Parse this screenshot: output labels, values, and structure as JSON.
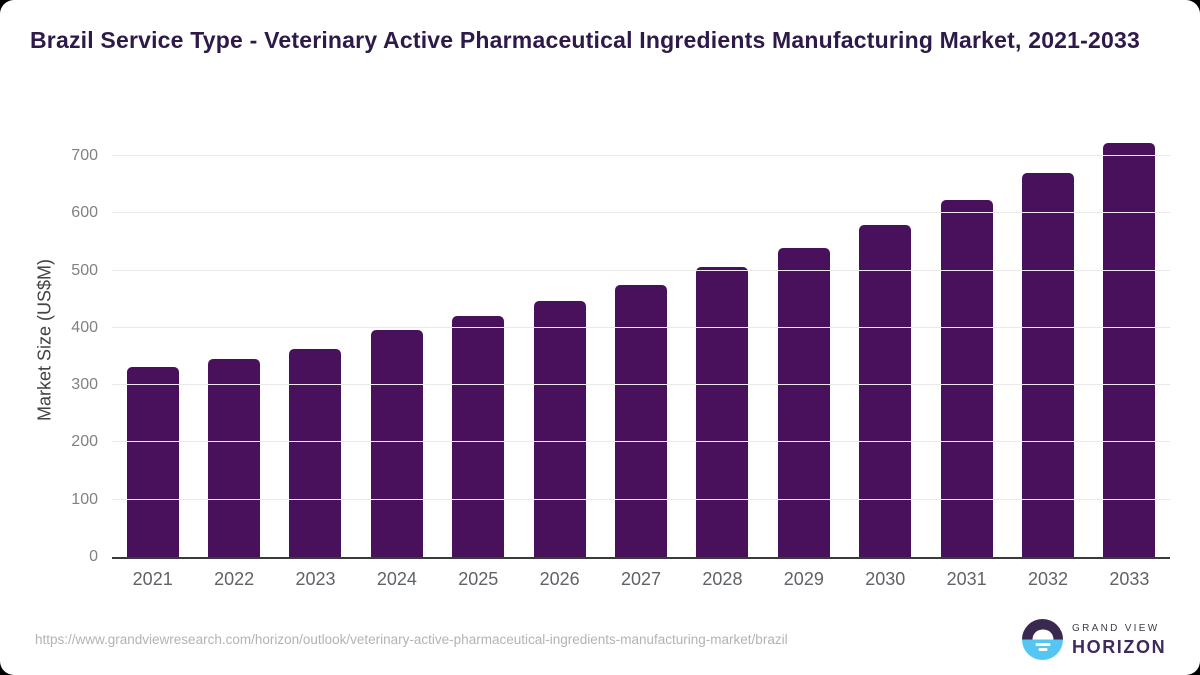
{
  "title": "Brazil Service Type - Veterinary Active Pharmaceutical Ingredients Manufacturing Market, 2021-2033",
  "chart_data": {
    "type": "bar",
    "title": "Brazil Service Type - Veterinary Active Pharmaceutical Ingredients Manufacturing Market, 2021-2033",
    "categories": [
      "2021",
      "2022",
      "2023",
      "2024",
      "2025",
      "2026",
      "2027",
      "2028",
      "2029",
      "2030",
      "2031",
      "2032",
      "2033"
    ],
    "values": [
      331,
      346,
      364,
      397,
      421,
      447,
      475,
      506,
      540,
      580,
      624,
      670,
      723
    ],
    "xlabel": "",
    "ylabel": "Market Size (US$M)",
    "ylim": [
      0,
      735
    ],
    "yticks": [
      0,
      100,
      200,
      300,
      400,
      500,
      600,
      700
    ],
    "grid": "horizontal",
    "legend": "none",
    "bar_color": "#49105c"
  },
  "colors": {
    "title_text": "#2e1a49",
    "bar": "#49105c",
    "axis_line": "#3a3a3a",
    "gridline": "#e9e9e9",
    "tick_text": "#818181",
    "xlabel_text": "#5f6368",
    "url_text": "#b3b3b3",
    "logo_purple": "#39294e",
    "logo_blue": "#55c6f2",
    "brand_text": "#3e2a5e"
  },
  "footer": {
    "source_url": "https://www.grandviewresearch.com/horizon/outlook/veterinary-active-pharmaceutical-ingredients-manufacturing-market/brazil",
    "brand_top": "GRAND VIEW",
    "brand_bottom": "HORIZON"
  }
}
